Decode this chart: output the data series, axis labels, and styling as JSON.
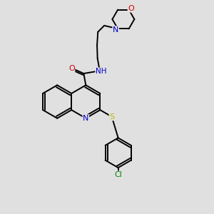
{
  "bg_color": "#e0e0e0",
  "bond_color": "#000000",
  "atom_colors": {
    "N": "#0000cc",
    "O": "#dd0000",
    "S": "#bbbb00",
    "Cl": "#008800",
    "H": "#666666",
    "C": "#000000"
  },
  "figsize": [
    3.0,
    3.0
  ],
  "dpi": 100,
  "xlim": [
    0,
    10
  ],
  "ylim": [
    0,
    10
  ]
}
